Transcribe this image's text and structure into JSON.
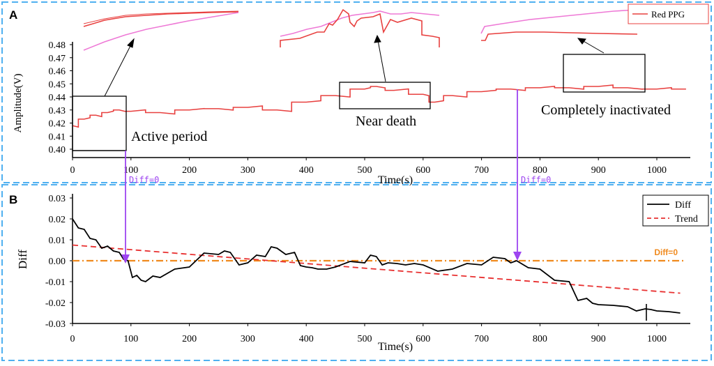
{
  "panel_a": {
    "label": "A",
    "legend": "Red PPG",
    "ylabel": "Amplitude(V)",
    "xlabel": "Time(s)",
    "annotations": {
      "active": "Active period",
      "near": "Near death",
      "inactive": "Completely inactivated"
    }
  },
  "panel_b": {
    "label": "B",
    "ylabel": "Diff",
    "xlabel": "Time(s)",
    "legend_diff": "Diff",
    "legend_trend": "Trend",
    "zero_label": "Diff=0"
  },
  "markers": {
    "label1": "Diff=0",
    "label2": "Diff=0"
  },
  "colors": {
    "red": "#e8403f",
    "pink": "#ee79d6",
    "frame": "#4fb0f0",
    "purple": "#9d45f0",
    "orange": "#f08a1e",
    "trend": "#e83030"
  },
  "chart_data": [
    {
      "type": "line",
      "title": "A",
      "series": [
        {
          "name": "Red PPG",
          "x": [
            0,
            20,
            40,
            60,
            80,
            100,
            150,
            200,
            250,
            300,
            350,
            400,
            450,
            500,
            520,
            550,
            600,
            620,
            650,
            700,
            750,
            800,
            850,
            900,
            950,
            1000,
            1050
          ],
          "values": [
            0.418,
            0.423,
            0.426,
            0.428,
            0.43,
            0.429,
            0.428,
            0.43,
            0.431,
            0.432,
            0.43,
            0.436,
            0.441,
            0.446,
            0.448,
            0.445,
            0.442,
            0.436,
            0.441,
            0.444,
            0.446,
            0.447,
            0.447,
            0.448,
            0.447,
            0.446,
            0.446
          ]
        }
      ],
      "xlabel": "Time(s)",
      "ylabel": "Amplitude(V)",
      "xlim": [
        0,
        1050
      ],
      "ylim": [
        0.395,
        0.485
      ],
      "xticks": [
        0,
        100,
        200,
        300,
        400,
        500,
        600,
        700,
        800,
        900,
        1000
      ],
      "xtick_labels": [
        "0",
        "100",
        "200",
        "300",
        "400",
        "500",
        "600",
        "700",
        "800",
        "900",
        "1000"
      ],
      "yticks": [
        0.4,
        0.41,
        0.42,
        0.43,
        0.44,
        0.45,
        0.46,
        0.47,
        0.48
      ],
      "ytick_labels": [
        "0.40",
        "0.41",
        "0.42",
        "0.43",
        "0.44",
        "0.45",
        "0.46",
        "0.47",
        "0.48"
      ],
      "legend": "top-right"
    },
    {
      "type": "line",
      "title": "B",
      "series": [
        {
          "name": "Diff",
          "x": [
            0,
            20,
            40,
            60,
            80,
            95,
            110,
            125,
            150,
            200,
            250,
            270,
            300,
            330,
            350,
            380,
            400,
            420,
            450,
            500,
            520,
            540,
            570,
            600,
            650,
            700,
            740,
            760,
            800,
            850,
            880,
            900,
            950,
            980,
            1000,
            1040
          ],
          "values": [
            0.02,
            0.015,
            0.01,
            0.007,
            0.004,
            0.0,
            -0.007,
            -0.01,
            -0.008,
            -0.003,
            0.003,
            0.004,
            -0.001,
            0.002,
            0.006,
            0.004,
            -0.003,
            -0.004,
            -0.003,
            -0.001,
            0.002,
            -0.001,
            -0.002,
            -0.002,
            -0.004,
            -0.002,
            0.001,
            0.0,
            -0.004,
            -0.01,
            -0.018,
            -0.021,
            -0.022,
            -0.023,
            -0.024,
            -0.025
          ]
        },
        {
          "name": "Trend",
          "x": [
            0,
            1040
          ],
          "values": [
            0.0075,
            -0.0155
          ]
        }
      ],
      "reference_line": {
        "y": 0,
        "label": "Diff=0"
      },
      "xlabel": "Time(s)",
      "ylabel": "Diff",
      "xlim": [
        0,
        1050
      ],
      "ylim": [
        -0.03,
        0.03
      ],
      "xticks": [
        0,
        100,
        200,
        300,
        400,
        500,
        600,
        700,
        800,
        900,
        1000
      ],
      "xtick_labels": [
        "0",
        "100",
        "200",
        "300",
        "400",
        "500",
        "600",
        "700",
        "800",
        "900",
        "1000"
      ],
      "yticks": [
        0.03,
        0.02,
        0.01,
        0.0,
        -0.01,
        -0.02,
        -0.03
      ],
      "ytick_labels": [
        "0.03",
        "0.02",
        "0.01",
        "0.00",
        "-0.01",
        "-0.02",
        "-0.03"
      ],
      "legend": "top-right"
    }
  ]
}
